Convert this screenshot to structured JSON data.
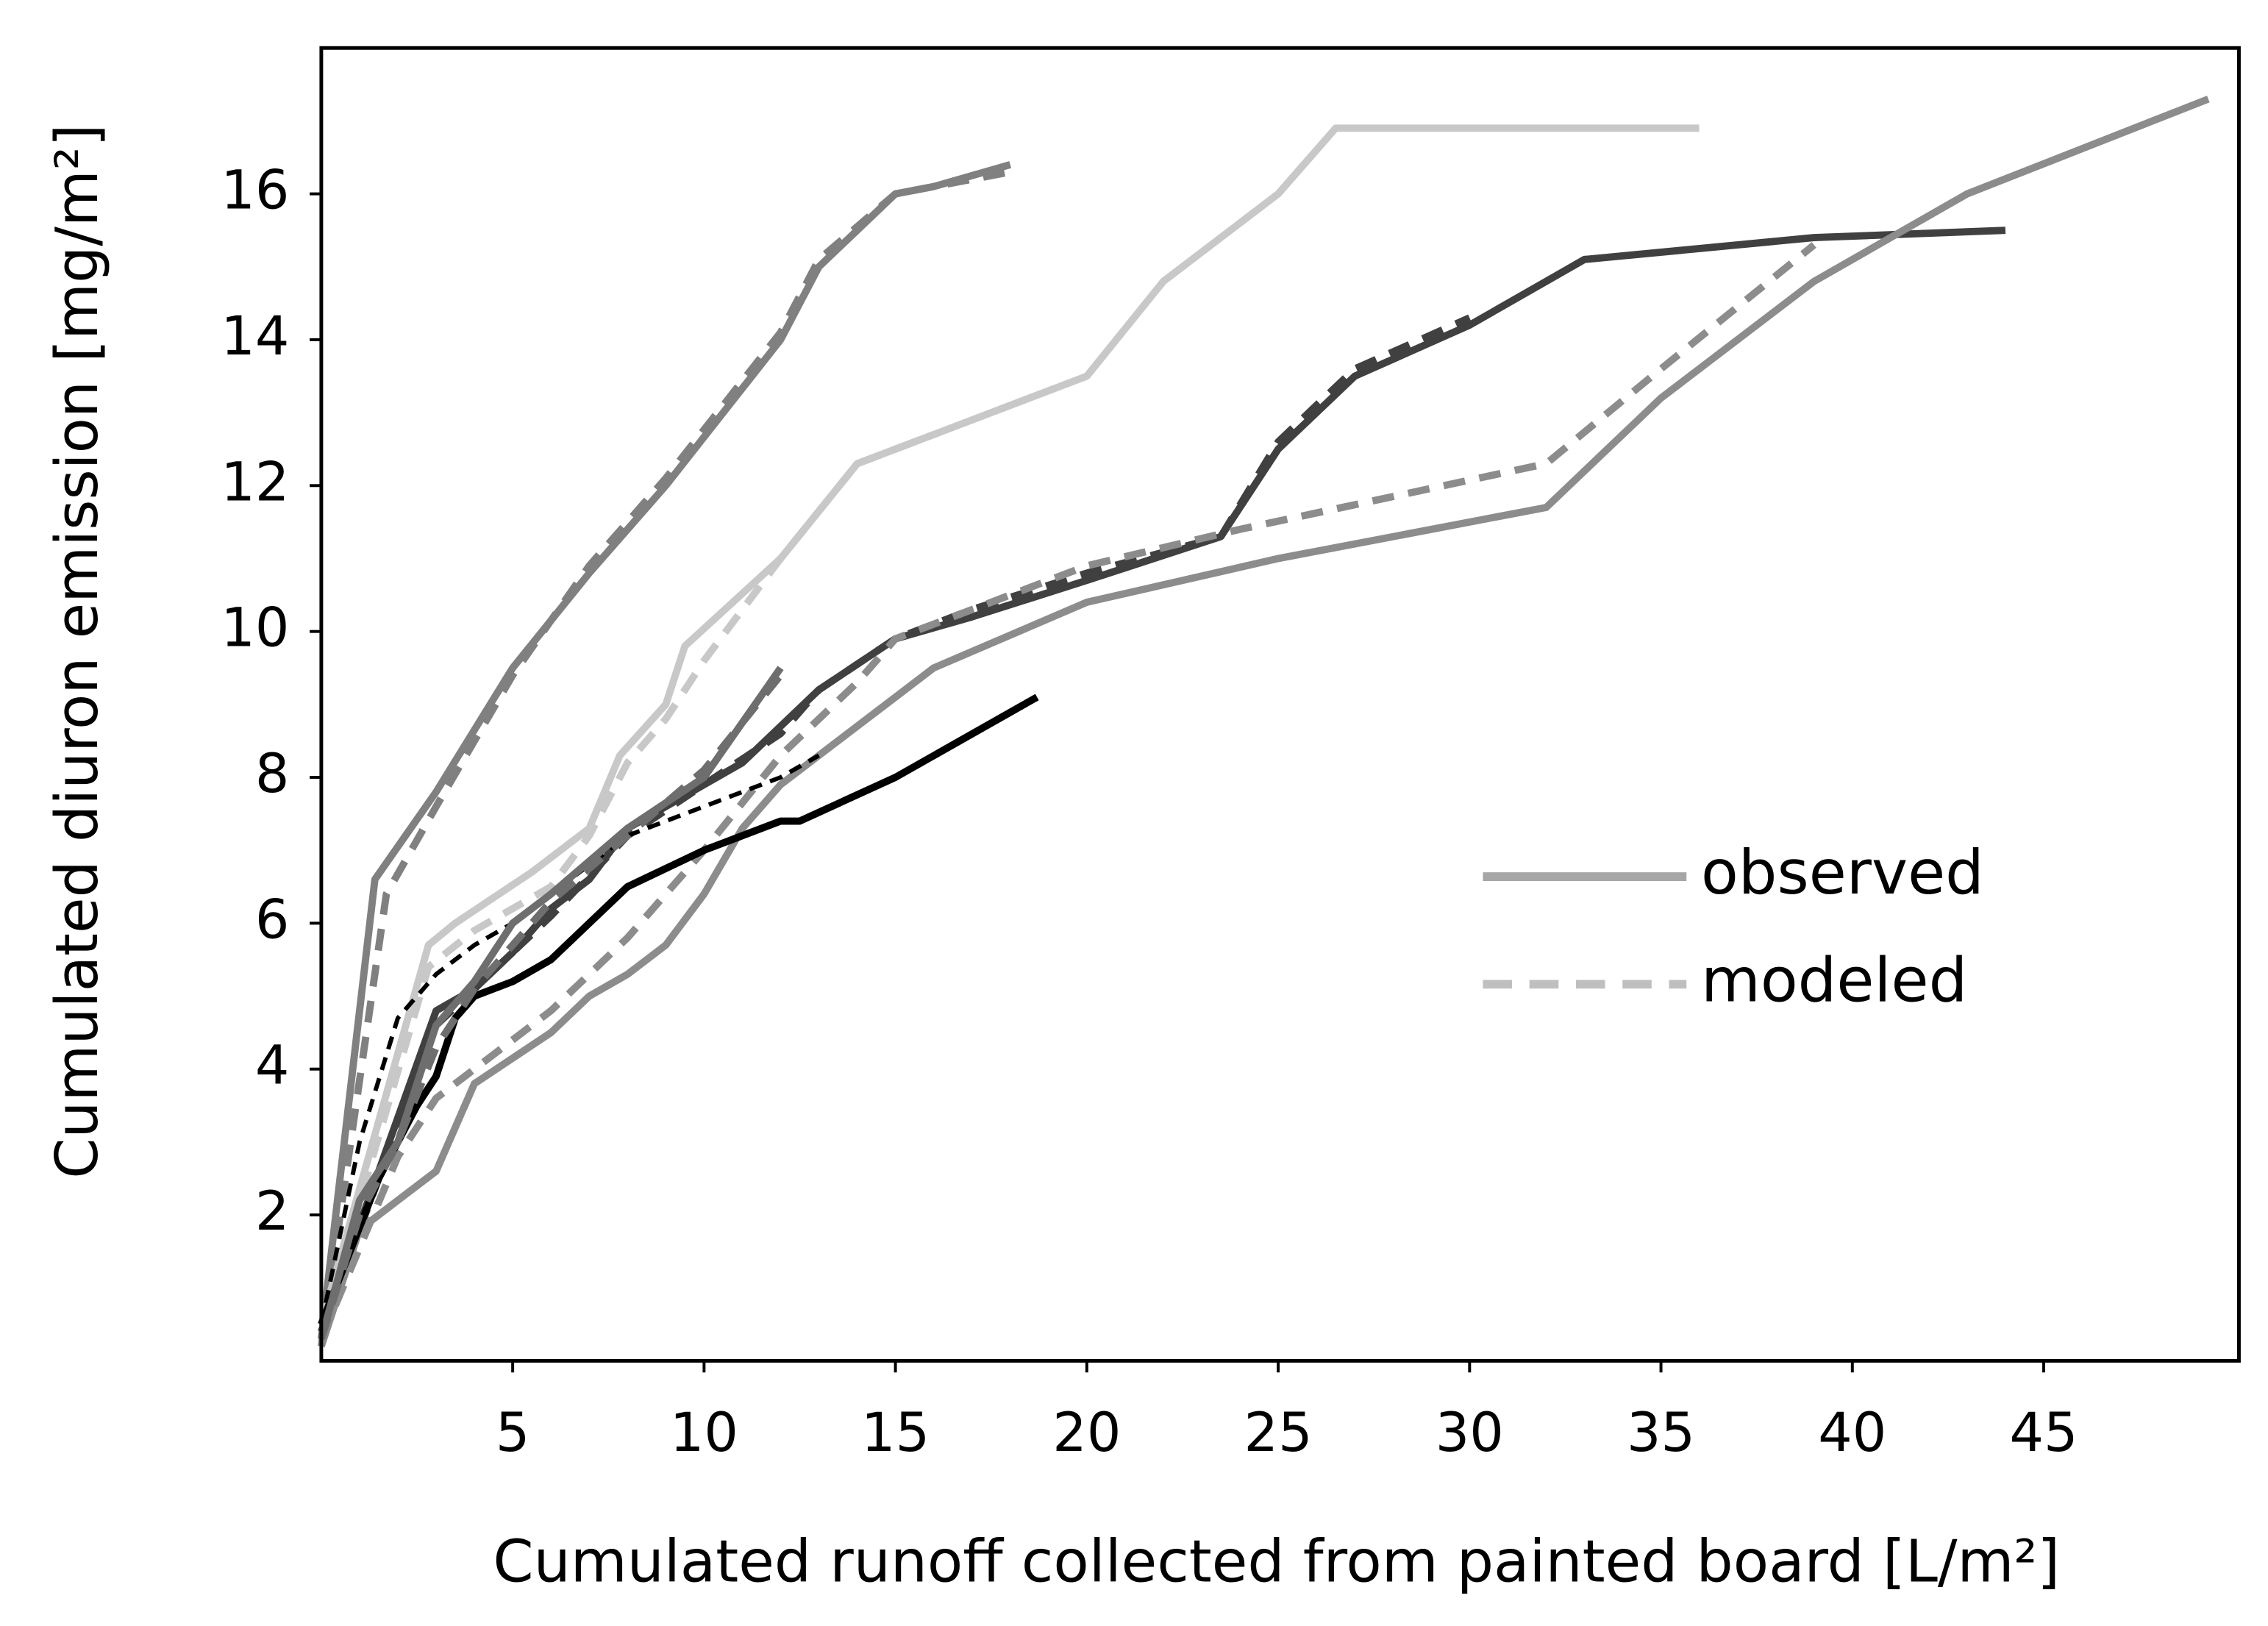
{
  "chart_data": {
    "type": "line",
    "xlabel": "Cumulated runoff collected from painted board [L/m²]",
    "ylabel": "Cumulated diuron emission [mg/m²]",
    "xlim": [
      0,
      50.1
    ],
    "ylim": [
      0,
      18
    ],
    "xticks": [
      5,
      10,
      15,
      20,
      25,
      30,
      35,
      40,
      45
    ],
    "yticks": [
      2,
      4,
      6,
      8,
      10,
      12,
      14,
      16
    ],
    "legend_position": "right",
    "legend": [
      {
        "label": "observed",
        "color": "#a6a6a6",
        "dashed": false
      },
      {
        "label": "modeled",
        "color": "#bfbfbf",
        "dashed": true
      }
    ],
    "series": [
      {
        "color": "#808080",
        "dashed": false,
        "width": 5,
        "x": [
          0,
          1.4,
          3,
          5,
          7,
          9,
          12,
          13,
          15,
          16,
          18
        ],
        "values": [
          0.3,
          6.6,
          7.8,
          9.5,
          10.8,
          12,
          14,
          15,
          16,
          16.1,
          16.4
        ]
      },
      {
        "color": "#808080",
        "dashed": true,
        "width": 5,
        "x": [
          0,
          1.7,
          3,
          5,
          7,
          9,
          12,
          13,
          15,
          18
        ],
        "values": [
          0.2,
          6.4,
          7.6,
          9.4,
          10.9,
          12.1,
          14.1,
          15.1,
          16,
          16.3
        ]
      },
      {
        "color": "#c8c8c8",
        "dashed": false,
        "width": 5,
        "x": [
          0,
          2.8,
          3.5,
          5.5,
          7,
          7.8,
          9,
          9.5,
          12,
          14,
          16,
          20,
          22,
          25,
          26.5,
          36
        ],
        "values": [
          0.5,
          5.7,
          6.0,
          6.7,
          7.3,
          8.3,
          9,
          9.8,
          11,
          12.3,
          12.7,
          13.5,
          14.8,
          16,
          16.9,
          16.9
        ]
      },
      {
        "color": "#c8c8c8",
        "dashed": true,
        "width": 5,
        "x": [
          0,
          2.8,
          4,
          6,
          7,
          8,
          9,
          10,
          12,
          14,
          16
        ],
        "values": [
          0.4,
          5.4,
          5.9,
          6.5,
          7.2,
          8.2,
          8.8,
          9.6,
          11,
          12.3,
          12.7
        ]
      },
      {
        "color": "#404040",
        "dashed": false,
        "width": 5,
        "x": [
          0,
          3,
          4,
          5,
          6,
          7,
          8,
          10,
          11,
          12,
          13,
          15,
          17,
          20,
          23.5,
          25,
          27,
          30,
          33,
          39,
          44
        ],
        "values": [
          0.4,
          4.8,
          5.1,
          5.6,
          6.2,
          6.6,
          7.3,
          7.9,
          8.2,
          8.7,
          9.2,
          9.9,
          10.2,
          10.7,
          11.3,
          12.5,
          13.5,
          14.2,
          15.1,
          15.4,
          15.5
        ]
      },
      {
        "color": "#404040",
        "dashed": true,
        "width": 5,
        "x": [
          0,
          3,
          4,
          6,
          8,
          10,
          12,
          13,
          15,
          17,
          20,
          23.5,
          25,
          27,
          30
        ],
        "values": [
          0.4,
          4.6,
          5.1,
          6.1,
          7.2,
          7.9,
          8.6,
          9.2,
          9.9,
          10.3,
          10.8,
          11.3,
          12.6,
          13.6,
          14.3
        ]
      },
      {
        "color": "#8c8c8c",
        "dashed": false,
        "width": 5,
        "x": [
          0,
          1,
          2,
          3,
          4,
          6,
          7,
          8,
          9,
          10,
          11,
          12,
          13,
          14,
          15,
          16,
          20,
          25,
          32,
          35,
          39,
          43,
          49.3
        ],
        "values": [
          0.2,
          1.8,
          2.2,
          2.6,
          3.8,
          4.5,
          5,
          5.3,
          5.7,
          6.4,
          7.3,
          7.9,
          8.3,
          8.7,
          9.1,
          9.5,
          10.4,
          11,
          11.7,
          13.2,
          14.8,
          16,
          17.3
        ]
      },
      {
        "color": "#8c8c8c",
        "dashed": true,
        "width": 5,
        "x": [
          0,
          2,
          3,
          4,
          6,
          8,
          10,
          12,
          14,
          15,
          20,
          24,
          32,
          35,
          39
        ],
        "values": [
          0.3,
          2.8,
          3.6,
          4,
          4.8,
          5.8,
          7,
          8.3,
          9.3,
          9.9,
          10.9,
          11.4,
          12.3,
          13.6,
          15.3
        ]
      },
      {
        "color": "#000000",
        "dashed": false,
        "width": 5,
        "x": [
          0,
          1.5,
          2.5,
          3,
          3.5,
          4,
          5,
          6,
          7,
          8,
          10,
          12,
          12.5,
          15,
          18.7
        ],
        "values": [
          0.5,
          2.5,
          3.5,
          3.9,
          4.7,
          5,
          5.2,
          5.5,
          6,
          6.5,
          7,
          7.4,
          7.4,
          8,
          9.1
        ]
      },
      {
        "color": "#000000",
        "dashed": true,
        "width": 3,
        "x": [
          0,
          1,
          2,
          3,
          4,
          5,
          8,
          11,
          12,
          13
        ],
        "values": [
          0.5,
          3,
          4.7,
          5.3,
          5.7,
          6,
          7.2,
          7.8,
          8,
          8.3
        ]
      },
      {
        "color": "#6e6e6e",
        "dashed": false,
        "width": 5,
        "x": [
          0,
          1,
          2,
          3,
          4,
          5,
          6,
          8,
          10,
          12
        ],
        "values": [
          0.3,
          2.2,
          3,
          4.6,
          5.2,
          6,
          6.4,
          7.3,
          8,
          9.5
        ]
      },
      {
        "color": "#6e6e6e",
        "dashed": true,
        "width": 5,
        "x": [
          0,
          1,
          2,
          3,
          4,
          6,
          8,
          10,
          12
        ],
        "values": [
          0.3,
          2,
          3,
          4.3,
          5.1,
          6.3,
          7.2,
          8.1,
          9.4
        ]
      }
    ]
  }
}
